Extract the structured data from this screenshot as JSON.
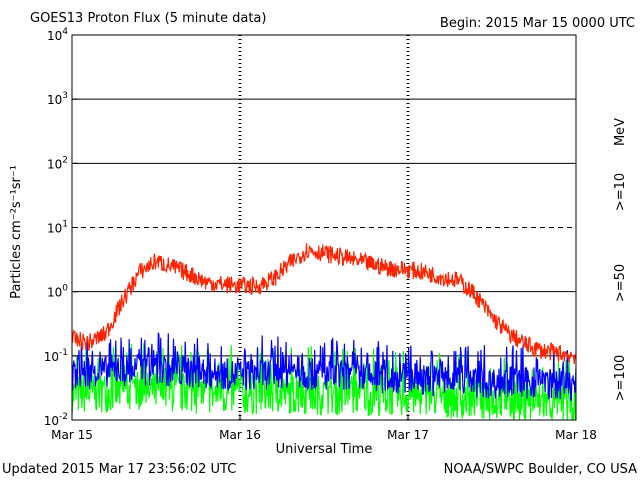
{
  "chart_data": {
    "type": "line",
    "title": "GOES13 Proton Flux (5 minute data)",
    "begin_label": "Begin: 2015 Mar 15 0000 UTC",
    "xlabel": "Universal Time",
    "ylabel": "Particles cm⁻²s⁻¹sr⁻¹",
    "unit_label": "MeV",
    "updated_label": "Updated 2015 Mar 17 23:56:02 UTC",
    "credit_label": "NOAA/SWPC Boulder, CO USA",
    "y_scale": "log",
    "ylim": [
      0.01,
      10000
    ],
    "xlim": [
      0,
      3
    ],
    "x_ticks": [
      {
        "label": "Mar 15",
        "day": 0
      },
      {
        "label": "Mar 16",
        "day": 1
      },
      {
        "label": "Mar 17",
        "day": 2
      },
      {
        "label": "Mar 18",
        "day": 3
      }
    ],
    "y_ticks": [
      {
        "base": "10",
        "exp": "-2",
        "value": 0.01
      },
      {
        "base": "10",
        "exp": "-1",
        "value": 0.1
      },
      {
        "base": "10",
        "exp": "0",
        "value": 1
      },
      {
        "base": "10",
        "exp": "1",
        "value": 10
      },
      {
        "base": "10",
        "exp": "2",
        "value": 100
      },
      {
        "base": "10",
        "exp": "3",
        "value": 1000
      },
      {
        "base": "10",
        "exp": "4",
        "value": 10000
      }
    ],
    "thresholds": [
      {
        "value": 10,
        "style": "dashed"
      }
    ],
    "series": [
      {
        "name": ">=10",
        "color": "#ff2200",
        "points": [
          [
            0.0,
            0.18
          ],
          [
            0.1,
            0.16
          ],
          [
            0.2,
            0.22
          ],
          [
            0.3,
            0.7
          ],
          [
            0.4,
            2.0
          ],
          [
            0.5,
            3.0
          ],
          [
            0.6,
            2.4
          ],
          [
            0.7,
            1.9
          ],
          [
            0.8,
            1.4
          ],
          [
            0.9,
            1.3
          ],
          [
            1.0,
            1.25
          ],
          [
            1.1,
            1.2
          ],
          [
            1.2,
            1.6
          ],
          [
            1.3,
            2.8
          ],
          [
            1.4,
            4.5
          ],
          [
            1.5,
            4.0
          ],
          [
            1.6,
            3.5
          ],
          [
            1.7,
            3.0
          ],
          [
            1.8,
            2.6
          ],
          [
            1.9,
            2.3
          ],
          [
            2.0,
            2.2
          ],
          [
            2.1,
            2.0
          ],
          [
            2.2,
            1.7
          ],
          [
            2.3,
            1.5
          ],
          [
            2.4,
            0.9
          ],
          [
            2.5,
            0.4
          ],
          [
            2.6,
            0.22
          ],
          [
            2.7,
            0.15
          ],
          [
            2.8,
            0.12
          ],
          [
            2.9,
            0.11
          ],
          [
            3.0,
            0.1
          ]
        ]
      },
      {
        "name": ">=50",
        "color": "#0000ff",
        "points": [
          [
            0.0,
            0.05
          ],
          [
            0.25,
            0.06
          ],
          [
            0.5,
            0.06
          ],
          [
            0.75,
            0.055
          ],
          [
            1.0,
            0.05
          ],
          [
            1.25,
            0.055
          ],
          [
            1.5,
            0.05
          ],
          [
            1.75,
            0.045
          ],
          [
            2.0,
            0.045
          ],
          [
            2.25,
            0.04
          ],
          [
            2.5,
            0.038
          ],
          [
            2.75,
            0.038
          ],
          [
            3.0,
            0.035
          ]
        ]
      },
      {
        "name": ">=100",
        "color": "#00ff00",
        "points": [
          [
            0.0,
            0.025
          ],
          [
            0.25,
            0.028
          ],
          [
            0.5,
            0.027
          ],
          [
            0.75,
            0.026
          ],
          [
            1.0,
            0.025
          ],
          [
            1.25,
            0.026
          ],
          [
            1.5,
            0.025
          ],
          [
            1.75,
            0.024
          ],
          [
            2.0,
            0.024
          ],
          [
            2.25,
            0.022
          ],
          [
            2.5,
            0.02
          ],
          [
            2.75,
            0.019
          ],
          [
            3.0,
            0.018
          ]
        ]
      }
    ],
    "legend_placement": "right-vertical",
    "grid": true
  }
}
